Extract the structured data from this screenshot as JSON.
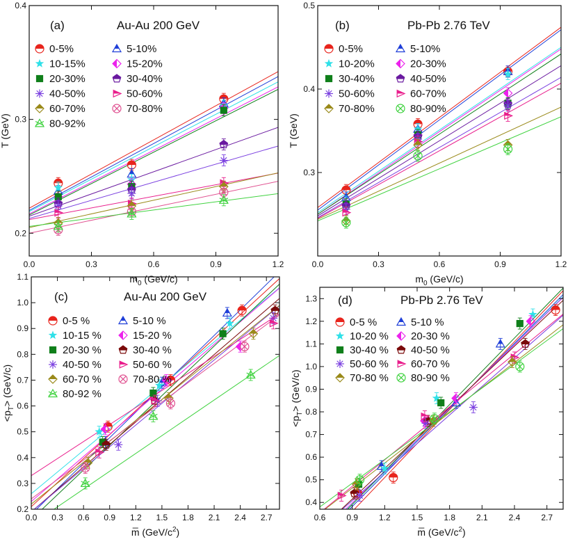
{
  "colors": {
    "red": "#e8241c",
    "blue": "#1f3fd8",
    "cyan": "#2fe0e8",
    "green": "#0f7f1a",
    "magenta": "#ec22ec",
    "purple": "#6a1aa0",
    "violet": "#7a3fe0",
    "pink": "#e91e8c",
    "olive": "#9a8a1a",
    "rose": "#e05090",
    "lgreen": "#3fd23f",
    "maroon": "#7a0a0a",
    "black": "#111111"
  },
  "chart_data": [
    {
      "id": "a",
      "type": "scatter",
      "panel_label": "(a)",
      "title": "Au-Au 200 GeV",
      "xlabel": "m",
      "xlabel_sub": "0",
      "xlabel_unit": " (GeV/c)",
      "ylabel": "T (GeV)",
      "xlim": [
        0.0,
        1.2
      ],
      "ylim": [
        0.18,
        0.4
      ],
      "xticks": [
        "0.0",
        "0.3",
        "0.6",
        "0.9",
        "1.2"
      ],
      "xtick_values": [
        0.0,
        0.3,
        0.6,
        0.9,
        1.2
      ],
      "yticks": [
        "0.2",
        "0.3",
        "0.4"
      ],
      "ytick_values": [
        0.2,
        0.3,
        0.4
      ],
      "x": [
        0.14,
        0.494,
        0.938
      ],
      "series": [
        {
          "name": "0-5%",
          "marker": "halfcircle",
          "color": "red",
          "values": [
            0.244,
            0.26,
            0.318
          ],
          "fit": [
            0.222,
            0.1
          ]
        },
        {
          "name": "5-10%",
          "marker": "tri",
          "color": "blue",
          "values": [
            0.237,
            0.252,
            0.314
          ],
          "fit": [
            0.22,
            0.098
          ]
        },
        {
          "name": "10-15%",
          "marker": "star",
          "color": "cyan",
          "values": [
            0.24,
            0.247,
            0.312
          ],
          "fit": [
            0.219,
            0.095
          ]
        },
        {
          "name": "15-20%",
          "marker": "halfdiamond",
          "color": "magenta",
          "values": [
            0.232,
            0.243,
            0.31
          ],
          "fit": [
            0.217,
            0.093
          ]
        },
        {
          "name": "20-30%",
          "marker": "square",
          "color": "green",
          "values": [
            0.232,
            0.241,
            0.308
          ],
          "fit": [
            0.216,
            0.092
          ]
        },
        {
          "name": "30-40%",
          "marker": "pentagon",
          "color": "purple",
          "values": [
            0.226,
            0.238,
            0.278
          ],
          "fit": [
            0.215,
            0.065
          ]
        },
        {
          "name": "40-50%",
          "marker": "asterisk",
          "color": "violet",
          "values": [
            0.224,
            0.235,
            0.264
          ],
          "fit": [
            0.213,
            0.053
          ]
        },
        {
          "name": "50-60%",
          "marker": "righttri",
          "color": "pink",
          "values": [
            0.218,
            0.226,
            0.244
          ],
          "fit": [
            0.212,
            0.034
          ]
        },
        {
          "name": "60-70%",
          "marker": "halfdiamond2",
          "color": "olive",
          "values": [
            0.209,
            0.224,
            0.241
          ],
          "fit": [
            0.205,
            0.04
          ]
        },
        {
          "name": "70-80%",
          "marker": "xcircle",
          "color": "rose",
          "values": [
            0.203,
            0.219,
            0.236
          ],
          "fit": [
            0.2,
            0.038
          ]
        },
        {
          "name": "80-92%",
          "marker": "xtri",
          "color": "lgreen",
          "values": [
            0.206,
            0.217,
            0.229
          ],
          "fit": [
            0.206,
            0.024
          ]
        }
      ]
    },
    {
      "id": "b",
      "type": "scatter",
      "panel_label": "(b)",
      "title": "Pb-Pb 2.76 TeV",
      "xlabel": "m",
      "xlabel_sub": "0",
      "xlabel_unit": " (GeV/c)",
      "ylabel": "T (GeV)",
      "xlim": [
        0.0,
        1.2
      ],
      "ylim": [
        0.2,
        0.5
      ],
      "xticks": [
        "0.0",
        "0.3",
        "0.6",
        "0.9",
        "1.2"
      ],
      "xtick_values": [
        0.0,
        0.3,
        0.6,
        0.9,
        1.2
      ],
      "yticks": [
        "0.3",
        "0.4",
        "0.5"
      ],
      "ytick_values": [
        0.3,
        0.4,
        0.5
      ],
      "x": [
        0.14,
        0.494,
        0.938
      ],
      "series": [
        {
          "name": "0-5%",
          "marker": "halfcircle",
          "color": "red",
          "values": [
            0.279,
            0.358,
            0.421
          ],
          "fit": [
            0.258,
            0.18
          ]
        },
        {
          "name": "5-10%",
          "marker": "tri",
          "color": "blue",
          "values": [
            0.27,
            0.352,
            0.421
          ],
          "fit": [
            0.255,
            0.18
          ]
        },
        {
          "name": "10-20%",
          "marker": "star",
          "color": "cyan",
          "values": [
            0.265,
            0.352,
            0.418
          ],
          "fit": [
            0.252,
            0.165
          ]
        },
        {
          "name": "20-30%",
          "marker": "halfdiamond",
          "color": "magenta",
          "values": [
            0.262,
            0.345,
            0.395
          ],
          "fit": [
            0.25,
            0.165
          ]
        },
        {
          "name": "30-40%",
          "marker": "square",
          "color": "green",
          "values": [
            0.262,
            0.345,
            0.383
          ],
          "fit": [
            0.25,
            0.16
          ]
        },
        {
          "name": "40-50%",
          "marker": "pentagon",
          "color": "purple",
          "values": [
            0.26,
            0.343,
            0.382
          ],
          "fit": [
            0.248,
            0.15
          ]
        },
        {
          "name": "50-60%",
          "marker": "asterisk",
          "color": "violet",
          "values": [
            0.256,
            0.34,
            0.38
          ],
          "fit": [
            0.246,
            0.14
          ]
        },
        {
          "name": "60-70%",
          "marker": "righttri",
          "color": "pink",
          "values": [
            0.252,
            0.337,
            0.368
          ],
          "fit": [
            0.245,
            0.135
          ]
        },
        {
          "name": "70-80%",
          "marker": "halfdiamond2",
          "color": "olive",
          "values": [
            0.242,
            0.333,
            0.333
          ],
          "fit": [
            0.244,
            0.112
          ]
        },
        {
          "name": "80-90%",
          "marker": "xcircle",
          "color": "lgreen",
          "values": [
            0.24,
            0.32,
            0.328
          ],
          "fit": [
            0.242,
            0.104
          ]
        }
      ]
    },
    {
      "id": "c",
      "type": "scatter",
      "panel_label": "(c)",
      "title": "Au-Au 200 GeV",
      "xlabel": "m̅",
      "xlabel_unit": " (GeV/c",
      "xlabel_sup": "2",
      "xlabel_end": ")",
      "ylabel": "<p",
      "ylabel_sub": "T",
      "ylabel_end": "> (GeV/c)",
      "xlim": [
        0.0,
        2.85
      ],
      "ylim": [
        0.2,
        1.1
      ],
      "xticks": [
        "0.0",
        "0.3",
        "0.6",
        "0.9",
        "1.2",
        "1.5",
        "1.8",
        "2.1",
        "2.4",
        "2.7"
      ],
      "xtick_values": [
        0.0,
        0.3,
        0.6,
        0.9,
        1.2,
        1.5,
        1.8,
        2.1,
        2.4,
        2.7
      ],
      "yticks": [
        "0.2",
        "0.3",
        "0.4",
        "0.5",
        "0.6",
        "0.7",
        "0.8",
        "0.9",
        "1.0",
        "1.1"
      ],
      "ytick_values": [
        0.2,
        0.3,
        0.4,
        0.5,
        0.6,
        0.7,
        0.8,
        0.9,
        1.0,
        1.1
      ],
      "series": [
        {
          "name": "0-5 %",
          "marker": "halfcircle",
          "color": "red",
          "x": [
            0.88,
            1.6,
            2.42
          ],
          "values": [
            0.52,
            0.7,
            0.97
          ],
          "fit": [
            0.21,
            0.31
          ]
        },
        {
          "name": "5-10 %",
          "marker": "tri",
          "color": "blue",
          "x": [
            0.85,
            1.5,
            2.25
          ],
          "values": [
            0.46,
            0.69,
            0.96
          ],
          "fit": [
            0.18,
            0.33
          ]
        },
        {
          "name": "10-15 %",
          "marker": "star",
          "color": "cyan",
          "x": [
            0.78,
            1.47,
            2.28
          ],
          "values": [
            0.5,
            0.68,
            0.92
          ],
          "fit": [
            0.26,
            0.28
          ]
        },
        {
          "name": "15-20 %",
          "marker": "halfdiamond",
          "color": "magenta",
          "x": [
            0.85,
            1.55,
            2.4
          ],
          "values": [
            0.51,
            0.7,
            0.83
          ],
          "fit": [
            0.23,
            0.29
          ]
        },
        {
          "name": "20-30 %",
          "marker": "square",
          "color": "green",
          "x": [
            0.82,
            1.4,
            2.2
          ],
          "values": [
            0.46,
            0.65,
            0.88
          ],
          "fit": [
            0.16,
            0.32
          ]
        },
        {
          "name": "30-40 %",
          "marker": "pentagon",
          "color": "maroon",
          "x": [
            0.86,
            1.42,
            2.8
          ],
          "values": [
            0.45,
            0.62,
            0.97
          ],
          "fit": [
            0.19,
            0.29
          ]
        },
        {
          "name": "40-50 %",
          "marker": "asterisk",
          "color": "violet",
          "x": [
            1.0,
            1.45,
            2.78
          ],
          "values": [
            0.45,
            0.62,
            0.94
          ],
          "fit": [
            0.19,
            0.28
          ]
        },
        {
          "name": "50-60 %",
          "marker": "righttri",
          "color": "pink",
          "x": [
            0.78,
            1.42,
            2.78
          ],
          "values": [
            0.42,
            0.62,
            0.92
          ],
          "fit": [
            0.33,
            0.22
          ]
        },
        {
          "name": "60-70 %",
          "marker": "halfdiamond2",
          "color": "olive",
          "x": [
            0.65,
            1.58,
            2.55
          ],
          "values": [
            0.38,
            0.63,
            0.88
          ],
          "fit": [
            0.22,
            0.27
          ]
        },
        {
          "name": "70-80 %",
          "marker": "xcircle",
          "color": "rose",
          "x": [
            0.62,
            1.6,
            2.45
          ],
          "values": [
            0.36,
            0.61,
            0.83
          ],
          "fit": [
            0.24,
            0.25
          ]
        },
        {
          "name": "80-92 %",
          "marker": "xtri",
          "color": "lgreen",
          "x": [
            0.62,
            1.4,
            2.52
          ],
          "values": [
            0.3,
            0.56,
            0.72
          ],
          "fit": [
            0.14,
            0.23
          ]
        }
      ]
    },
    {
      "id": "d",
      "type": "scatter",
      "panel_label": "(d)",
      "title": "Pb-Pb 2.76 TeV",
      "xlabel": "m̅",
      "xlabel_unit": " (GeV/c",
      "xlabel_sup": "2",
      "xlabel_end": ")",
      "ylabel": "<p",
      "ylabel_sub": "T",
      "ylabel_end": "> (GeV/c)",
      "xlim": [
        0.6,
        2.85
      ],
      "ylim": [
        0.37,
        1.35
      ],
      "xticks": [
        "0.6",
        "0.9",
        "1.2",
        "1.5",
        "1.8",
        "2.1",
        "2.4",
        "2.7"
      ],
      "xtick_values": [
        0.6,
        0.9,
        1.2,
        1.5,
        1.8,
        2.1,
        2.4,
        2.7
      ],
      "yticks": [
        "0.4",
        "0.5",
        "0.6",
        "0.7",
        "0.8",
        "0.9",
        "1.0",
        "1.1",
        "1.2",
        "1.3"
      ],
      "ytick_values": [
        0.4,
        0.5,
        0.6,
        0.7,
        0.8,
        0.9,
        1.0,
        1.1,
        1.2,
        1.3
      ],
      "series": [
        {
          "name": "0-5 %",
          "marker": "halfcircle",
          "color": "red",
          "x": [
            0.95,
            1.28,
            2.78
          ],
          "values": [
            0.44,
            0.51,
            1.25
          ],
          "fit": [
            -0.09,
            0.5
          ]
        },
        {
          "name": "5-10 %",
          "marker": "tri",
          "color": "blue",
          "x": [
            1.17,
            1.86,
            2.27
          ],
          "values": [
            0.56,
            0.84,
            1.1
          ],
          "fit": [
            -0.05,
            0.48
          ]
        },
        {
          "name": "10-20 %",
          "marker": "star",
          "color": "cyan",
          "x": [
            1.2,
            1.68,
            2.57
          ],
          "values": [
            0.55,
            0.86,
            1.23
          ],
          "fit": [
            -0.03,
            0.47
          ]
        },
        {
          "name": "20-30 %",
          "marker": "halfdiamond",
          "color": "magenta",
          "x": [
            1.57,
            1.86,
            2.55
          ],
          "values": [
            0.76,
            0.86,
            1.2
          ],
          "fit": [
            -0.02,
            0.465
          ]
        },
        {
          "name": "30-40 %",
          "marker": "square",
          "color": "green",
          "x": [
            0.96,
            1.72,
            2.45
          ],
          "values": [
            0.48,
            0.84,
            1.19
          ],
          "fit": [
            -0.05,
            0.49
          ]
        },
        {
          "name": "40-50 %",
          "marker": "pentagon",
          "color": "maroon",
          "x": [
            0.92,
            1.6,
            2.5
          ],
          "values": [
            0.44,
            0.76,
            1.1
          ],
          "fit": [
            0.01,
            0.45
          ]
        },
        {
          "name": "50-60 %",
          "marker": "asterisk",
          "color": "violet",
          "x": [
            0.97,
            1.58,
            2.02
          ],
          "values": [
            0.43,
            0.75,
            0.82
          ],
          "fit": [
            0.03,
            0.42
          ]
        },
        {
          "name": "60-70 %",
          "marker": "righttri",
          "color": "pink",
          "x": [
            0.8,
            1.57,
            2.4
          ],
          "values": [
            0.43,
            0.78,
            1.04
          ],
          "fit": [
            0.12,
            0.39
          ]
        },
        {
          "name": "70-80 %",
          "marker": "halfdiamond2",
          "color": "olive",
          "x": [
            0.94,
            1.65,
            2.38
          ],
          "values": [
            0.48,
            0.76,
            1.02
          ],
          "fit": [
            0.13,
            0.37
          ]
        },
        {
          "name": "80-90 %",
          "marker": "xcircle",
          "color": "lgreen",
          "x": [
            0.97,
            1.66,
            2.45
          ],
          "values": [
            0.5,
            0.77,
            1.0
          ],
          "fit": [
            0.17,
            0.35
          ]
        }
      ]
    }
  ]
}
